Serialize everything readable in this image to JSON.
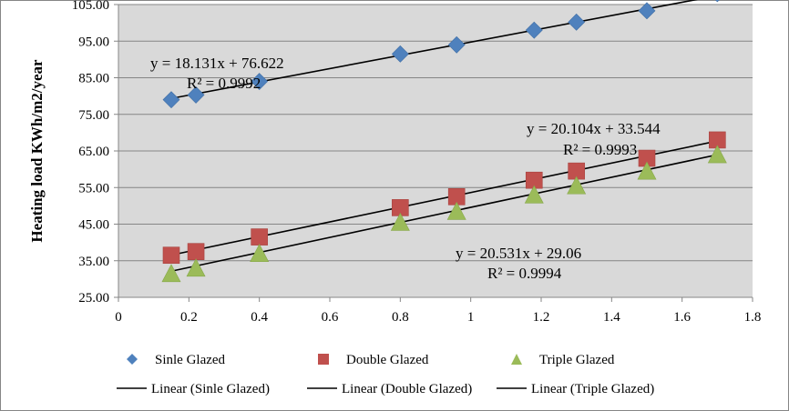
{
  "chart_data": {
    "type": "scatter",
    "title": "",
    "xlabel": "",
    "ylabel": "Heating load KWh/m2/year",
    "xlim": [
      0,
      1.8
    ],
    "ylim": [
      25,
      105
    ],
    "x_ticks": [
      "0",
      "0.2",
      "0.4",
      "0.6",
      "0.8",
      "1",
      "1.2",
      "1.4",
      "1.6",
      "1.8"
    ],
    "y_ticks": [
      "25.00",
      "35.00",
      "45.00",
      "55.00",
      "65.00",
      "75.00",
      "85.00",
      "95.00",
      "105.00"
    ],
    "grid": "horizontal",
    "legend_position": "bottom",
    "series": [
      {
        "name": "Sinle Glazed",
        "marker": "diamond",
        "color": "#4f81bd",
        "x": [
          0.15,
          0.22,
          0.4,
          0.8,
          0.96,
          1.18,
          1.3,
          1.5,
          1.7
        ],
        "y": [
          79,
          80.3,
          84,
          91.5,
          94,
          98,
          100.2,
          103.3,
          108
        ]
      },
      {
        "name": "Double Glazed",
        "marker": "square",
        "color": "#c0504d",
        "x": [
          0.15,
          0.22,
          0.4,
          0.8,
          0.96,
          1.18,
          1.3,
          1.5,
          1.7
        ],
        "y": [
          36.5,
          37.5,
          41.5,
          49.5,
          52.5,
          57,
          59.5,
          63,
          68
        ]
      },
      {
        "name": "Triple Glazed",
        "marker": "triangle",
        "color": "#9bbb59",
        "x": [
          0.15,
          0.22,
          0.4,
          0.8,
          0.96,
          1.18,
          1.3,
          1.5,
          1.7
        ],
        "y": [
          31.5,
          33,
          37,
          45.5,
          48.5,
          53,
          55.5,
          59.5,
          64
        ]
      }
    ],
    "trendlines": [
      {
        "name": "Linear (Sinle Glazed)",
        "slope": 18.131,
        "intercept": 76.622,
        "x_range": [
          0.15,
          1.7
        ],
        "equation": "y = 18.131x + 76.622",
        "r2": "R² = 0.9992"
      },
      {
        "name": "Linear (Double Glazed)",
        "slope": 20.104,
        "intercept": 33.544,
        "x_range": [
          0.15,
          1.7
        ],
        "equation": "y = 20.104x + 33.544",
        "r2": "R² = 0.9993"
      },
      {
        "name": "Linear (Triple Glazed)",
        "slope": 20.531,
        "intercept": 29.06,
        "x_range": [
          0.15,
          1.7
        ],
        "equation": "y = 20.531x + 29.06",
        "r2": "R² = 0.9994"
      }
    ],
    "colors": {
      "plot_background": "#d9d9d9",
      "gridline": "#868686",
      "trendline": "#000000"
    }
  }
}
